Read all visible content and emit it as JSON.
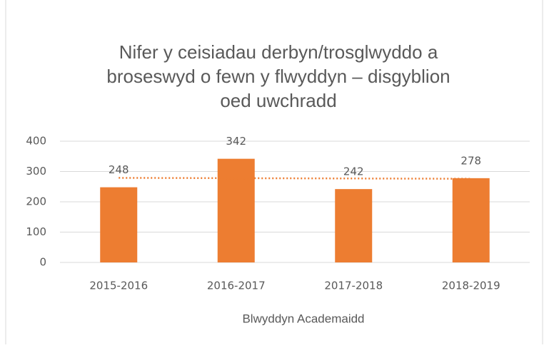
{
  "chart_data": {
    "type": "bar",
    "title": [
      "Nifer y ceisiadau derbyn/trosglwyddo a",
      "broseswyd o fewn y flwyddyn – disgyblion",
      "oed uwchradd"
    ],
    "categories": [
      "2015-2016",
      "2016-2017",
      "2017-2018",
      "2018-2019"
    ],
    "values": [
      248,
      342,
      242,
      278
    ],
    "color": "#ed7d31",
    "x_label": "Blwyddyn Academaidd",
    "ylim": [
      0,
      400
    ],
    "yticks": [
      0,
      100,
      200,
      300,
      400
    ],
    "grid": true,
    "trendline": {
      "type": "linear",
      "color": "#ed7d31"
    }
  }
}
